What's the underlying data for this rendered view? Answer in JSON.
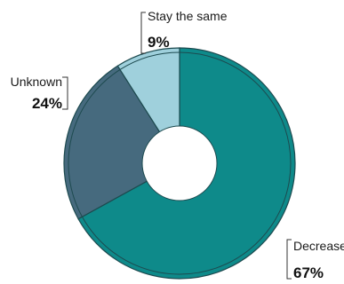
{
  "chart_data": {
    "type": "pie",
    "variant": "donut",
    "title": "",
    "slices": [
      {
        "label": "Decrease",
        "value": 67,
        "value_label": "67%",
        "color": "#0e8a8a"
      },
      {
        "label": "Unknown",
        "value": 24,
        "value_label": "24%",
        "color": "#466a7e"
      },
      {
        "label": "Stay the same",
        "value": 9,
        "value_label": "9%",
        "color": "#9fd0dc"
      }
    ],
    "start_angle_deg": 0,
    "direction": "clockwise",
    "legend": "none",
    "slice_border_color": "#1d4a4f"
  }
}
